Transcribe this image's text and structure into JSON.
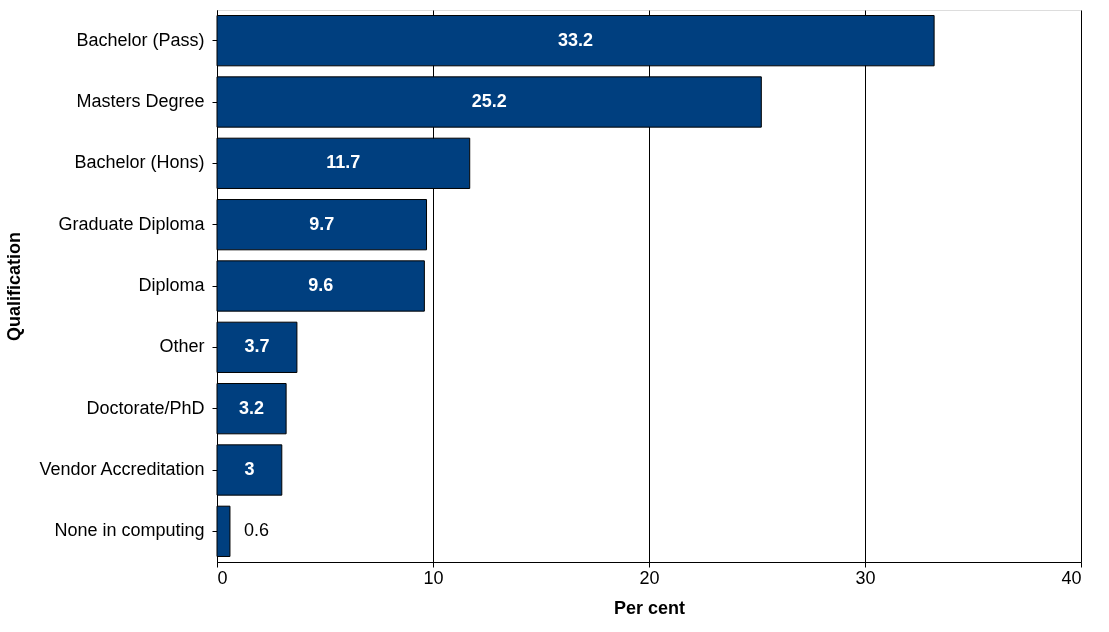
{
  "chart_data": {
    "type": "bar",
    "orientation": "horizontal",
    "xlabel": "Per cent",
    "ylabel": "Qualification",
    "categories": [
      "Bachelor (Pass)",
      "Masters Degree",
      "Bachelor (Hons)",
      "Graduate Diploma",
      "Diploma",
      "Other",
      "Doctorate/PhD",
      "Vendor Accreditation",
      "None in computing"
    ],
    "values": [
      33.2,
      25.2,
      11.7,
      9.7,
      9.6,
      3.7,
      3.2,
      3,
      0.6
    ],
    "color": "#003f7f",
    "xlim": [
      0,
      40
    ],
    "xticks": [
      0,
      10,
      20,
      30,
      40
    ],
    "grid": "x",
    "data_labels": true
  }
}
